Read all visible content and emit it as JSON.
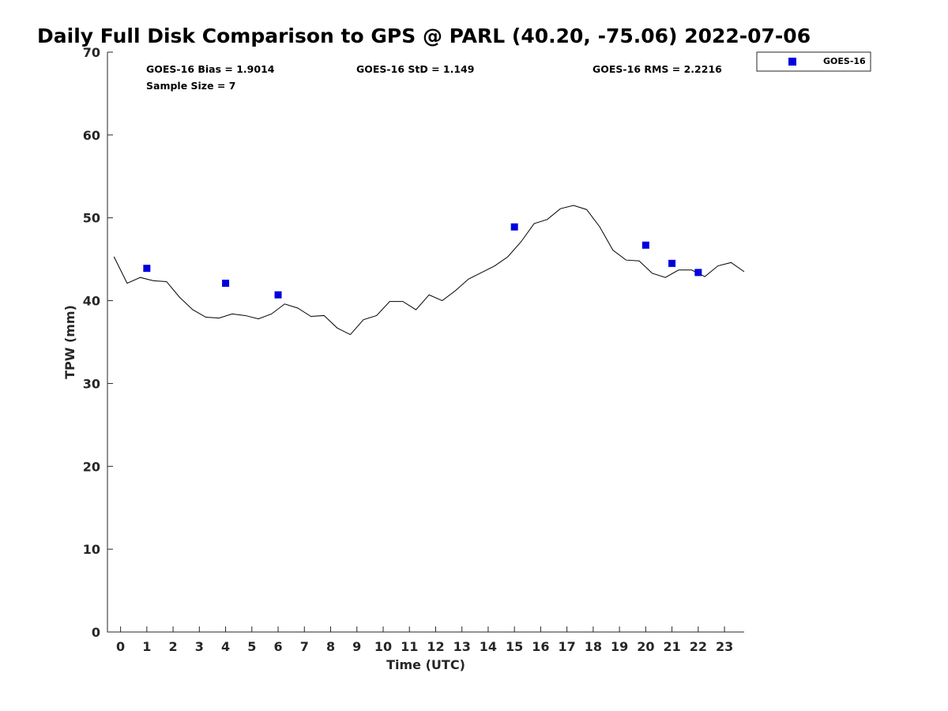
{
  "chart_data": {
    "type": "scatter",
    "title": "Daily Full Disk Comparison to GPS @ PARL (40.20, -75.06) 2022-07-06",
    "xlabel": "Time (UTC)",
    "ylabel": "TPW (mm)",
    "xlim": [
      -0.5,
      23.75
    ],
    "ylim": [
      0,
      70
    ],
    "xticks": [
      "0",
      "1",
      "2",
      "3",
      "4",
      "5",
      "6",
      "7",
      "8",
      "9",
      "10",
      "11",
      "12",
      "13",
      "14",
      "15",
      "16",
      "17",
      "18",
      "19",
      "20",
      "21",
      "22",
      "23"
    ],
    "yticks": [
      "0",
      "10",
      "20",
      "30",
      "40",
      "50",
      "60",
      "70"
    ],
    "stats": {
      "bias": "GOES-16 Bias = 1.9014",
      "sample": "Sample Size = 7",
      "std": "GOES-16 StD = 1.149",
      "rms": "GOES-16 RMS = 2.2216"
    },
    "legend": {
      "label": "GOES-16",
      "position": "top-right"
    },
    "series": [
      {
        "name": "GOES-16",
        "kind": "scatter",
        "color": "#0000dd",
        "x": [
          1.0,
          4.0,
          6.0,
          15.0,
          20.0,
          21.0,
          22.0
        ],
        "y": [
          43.9,
          42.1,
          40.7,
          48.9,
          46.7,
          44.5,
          43.4
        ]
      },
      {
        "name": "GPS",
        "kind": "line",
        "color": "#000000",
        "x": [
          -0.25,
          0.25,
          0.75,
          1.25,
          1.75,
          2.25,
          2.75,
          3.25,
          3.75,
          4.25,
          4.75,
          5.25,
          5.75,
          6.25,
          6.75,
          7.25,
          7.75,
          8.25,
          8.75,
          9.25,
          9.75,
          10.25,
          10.75,
          11.25,
          11.75,
          12.25,
          12.75,
          13.25,
          13.75,
          14.25,
          14.75,
          15.25,
          15.75,
          16.25,
          16.75,
          17.25,
          17.75,
          18.25,
          18.75,
          19.25,
          19.75,
          20.25,
          20.75,
          21.25,
          21.75,
          22.25,
          22.75,
          23.25,
          23.75
        ],
        "y": [
          45.3,
          42.1,
          42.8,
          42.4,
          42.3,
          40.4,
          38.9,
          38.0,
          37.9,
          38.4,
          38.2,
          37.8,
          38.4,
          39.6,
          39.1,
          38.1,
          38.2,
          36.7,
          35.9,
          37.7,
          38.2,
          39.9,
          39.9,
          38.9,
          40.7,
          40.0,
          41.2,
          42.6,
          43.4,
          44.2,
          45.3,
          47.1,
          49.3,
          49.8,
          51.1,
          51.5,
          51.0,
          48.9,
          46.1,
          44.9,
          44.8,
          43.3,
          42.8,
          43.7,
          43.7,
          42.9,
          44.2,
          44.6,
          43.5
        ]
      }
    ]
  }
}
